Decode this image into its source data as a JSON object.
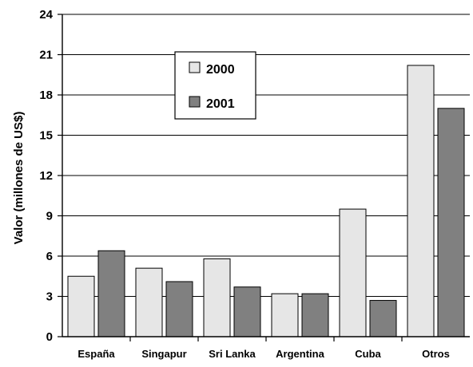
{
  "chart_data": {
    "type": "bar",
    "title": "",
    "xlabel": "",
    "ylabel": "Valor (millones de US$)",
    "ylim": [
      0,
      24
    ],
    "yticks": [
      0,
      3,
      6,
      9,
      12,
      15,
      18,
      21,
      24
    ],
    "grid": true,
    "legend_position": "top-center",
    "categories": [
      "España",
      "Singapur",
      "Sri Lanka",
      "Argentina",
      "Cuba",
      "Otros"
    ],
    "series": [
      {
        "name": "2000",
        "color": "#e6e6e6",
        "values": [
          4.5,
          5.1,
          5.8,
          3.2,
          9.5,
          20.2
        ]
      },
      {
        "name": "2001",
        "color": "#808080",
        "values": [
          6.4,
          4.1,
          3.7,
          3.2,
          2.7,
          17.0
        ]
      }
    ]
  }
}
